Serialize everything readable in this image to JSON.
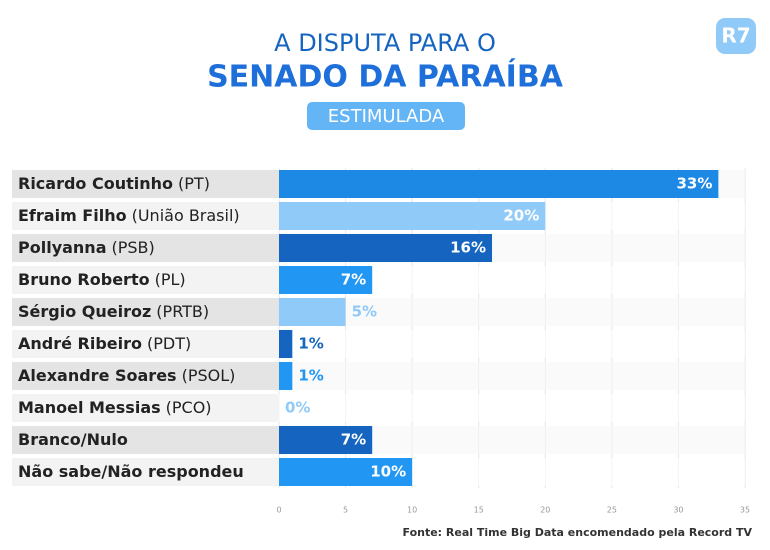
{
  "chart_data": {
    "type": "hbar",
    "title": "A DISPUTA PARA O",
    "subtitle": "SENADO DA PARAÍBA",
    "badge": "ESTIMULADA",
    "logo": "R7",
    "source": "Fonte: Real Time Big Data encomendado pela Record TV",
    "categories": [
      {
        "name": "Ricardo Coutinho",
        "party": "(PT)"
      },
      {
        "name": "Efraim Filho",
        "party": "(União Brasil)"
      },
      {
        "name": "Pollyanna",
        "party": "(PSB)"
      },
      {
        "name": "Bruno Roberto",
        "party": "(PL)"
      },
      {
        "name": "Sérgio Queiroz",
        "party": "(PRTB)"
      },
      {
        "name": "André Ribeiro",
        "party": "(PDT)"
      },
      {
        "name": "Alexandre Soares",
        "party": "(PSOL)"
      },
      {
        "name": "Manoel Messias",
        "party": "(PCO)"
      },
      {
        "name": "Branco/Nulo"
      },
      {
        "name": "Não sabe/Não respondeu"
      }
    ],
    "values": [
      33,
      20,
      16,
      7,
      5,
      1,
      1,
      0,
      7,
      10
    ],
    "value_labels": [
      "33%",
      "20%",
      "16%",
      "7%",
      "5%",
      "1%",
      "1%",
      "0%",
      "7%",
      "10%"
    ],
    "colors": [
      "#1e88e5",
      "#90caf9",
      "#1565c0",
      "#2196f3",
      "#90caf9",
      "#1565c0",
      "#2196f3",
      "#90caf9",
      "#1565c0",
      "#2196f3"
    ],
    "xlim": [
      0,
      35
    ],
    "xticks": [
      0,
      5,
      10,
      15,
      20,
      25,
      30,
      35
    ]
  }
}
